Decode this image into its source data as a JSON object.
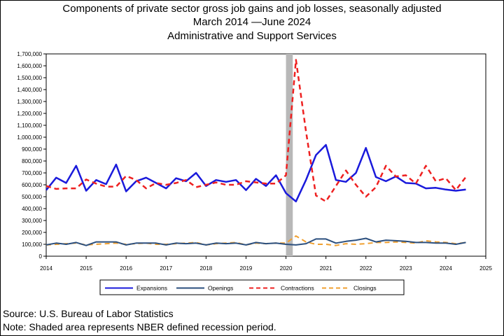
{
  "title": {
    "line1": "Components of private sector gross job gains and job losses, seasonally adjusted",
    "line2": "March 2014 —June 2024",
    "line3": "Administrative and Support Services"
  },
  "footer": {
    "source": "Source: U.S. Bureau of Labor Statistics",
    "note": "Note: Shaded area represents NBER defined recession period."
  },
  "chart_data": {
    "type": "line",
    "x_start": 2014.0,
    "x_step": 0.25,
    "xlim": [
      2014,
      2025
    ],
    "ylim": [
      0,
      1700000
    ],
    "x_ticks": [
      "2014",
      "2015",
      "2016",
      "2017",
      "2018",
      "2019",
      "2020",
      "2021",
      "2022",
      "2023",
      "2024",
      "2025"
    ],
    "y_ticks": [
      "0",
      "100,000",
      "200,000",
      "300,000",
      "400,000",
      "500,000",
      "600,000",
      "700,000",
      "800,000",
      "900,000",
      "1,000,000",
      "1,100,000",
      "1,200,000",
      "1,300,000",
      "1,400,000",
      "1,500,000",
      "1,600,000",
      "1,700,000"
    ],
    "recession": [
      2020.0,
      2020.17
    ],
    "legend_position": "bottom",
    "series": [
      {
        "name": "Expansions",
        "color": "#1a1adb",
        "style": "solid",
        "width": 2.5,
        "values": [
          555000,
          660000,
          615000,
          760000,
          550000,
          640000,
          605000,
          770000,
          545000,
          630000,
          660000,
          615000,
          570000,
          655000,
          630000,
          700000,
          590000,
          640000,
          625000,
          640000,
          555000,
          650000,
          590000,
          680000,
          530000,
          460000,
          640000,
          850000,
          935000,
          640000,
          625000,
          700000,
          910000,
          665000,
          630000,
          670000,
          615000,
          610000,
          570000,
          575000,
          560000,
          550000,
          560000
        ]
      },
      {
        "name": "Openings",
        "color": "#2b4f7e",
        "style": "solid",
        "width": 2,
        "values": [
          95000,
          110000,
          100000,
          115000,
          90000,
          120000,
          120000,
          120000,
          95000,
          110000,
          110000,
          110000,
          95000,
          110000,
          105000,
          110000,
          95000,
          110000,
          105000,
          110000,
          95000,
          115000,
          105000,
          110000,
          100000,
          95000,
          105000,
          145000,
          145000,
          110000,
          125000,
          135000,
          150000,
          120000,
          135000,
          130000,
          125000,
          115000,
          115000,
          110000,
          110000,
          100000,
          115000
        ]
      },
      {
        "name": "Contractions",
        "color": "#ee2020",
        "style": "dashed",
        "width": 2.5,
        "values": [
          590000,
          565000,
          570000,
          570000,
          645000,
          610000,
          585000,
          585000,
          675000,
          640000,
          570000,
          615000,
          600000,
          615000,
          640000,
          580000,
          600000,
          620000,
          600000,
          600000,
          630000,
          620000,
          610000,
          610000,
          680000,
          1650000,
          1050000,
          510000,
          460000,
          590000,
          720000,
          600000,
          500000,
          580000,
          760000,
          670000,
          680000,
          610000,
          760000,
          630000,
          655000,
          555000,
          665000
        ]
      },
      {
        "name": "Closings",
        "color": "#f0a030",
        "style": "dashed",
        "width": 2,
        "values": [
          95000,
          100000,
          105000,
          110000,
          95000,
          100000,
          105000,
          110000,
          100000,
          105000,
          110000,
          100000,
          100000,
          105000,
          110000,
          115000,
          95000,
          105000,
          110000,
          115000,
          95000,
          110000,
          105000,
          110000,
          110000,
          170000,
          120000,
          100000,
          100000,
          90000,
          105000,
          100000,
          105000,
          115000,
          115000,
          120000,
          115000,
          110000,
          130000,
          120000,
          115000,
          105000,
          115000
        ]
      }
    ]
  }
}
